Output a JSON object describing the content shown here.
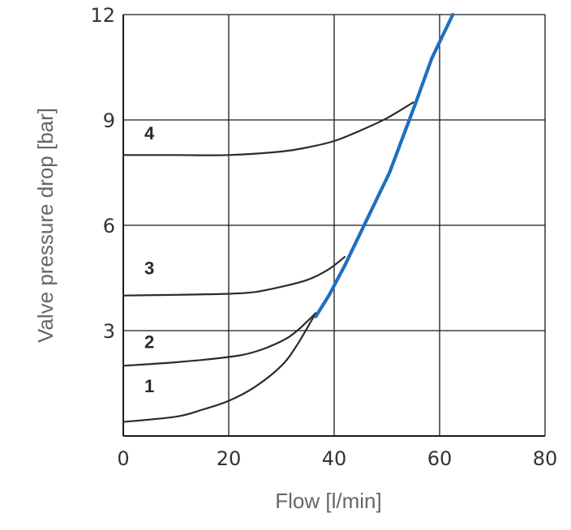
{
  "chart_data": {
    "type": "line",
    "title": "",
    "xlabel": "Flow [l/min]",
    "ylabel": "Valve pressure drop [bar]",
    "xlim": [
      0,
      80
    ],
    "ylim": [
      0,
      12
    ],
    "xticks": [
      0,
      20,
      40,
      60,
      80
    ],
    "yticks": [
      3,
      6,
      9,
      12
    ],
    "x_tick_labels": [
      "0",
      "20",
      "40",
      "60",
      "80"
    ],
    "y_tick_labels": [
      "3",
      "6",
      "9",
      "12"
    ],
    "grid": true,
    "colors": {
      "curves": "#2b2b2b",
      "limit": "#1f6fbf",
      "grid": "#1a1a1a"
    },
    "series": [
      {
        "name": "1",
        "label": "1",
        "label_at": [
          4,
          1.25
        ],
        "points": [
          [
            0,
            0.4
          ],
          [
            10,
            0.55
          ],
          [
            15,
            0.75
          ],
          [
            20,
            1.0
          ],
          [
            25,
            1.4
          ],
          [
            30,
            2.0
          ],
          [
            33,
            2.6
          ],
          [
            36.5,
            3.5
          ]
        ]
      },
      {
        "name": "2",
        "label": "2",
        "label_at": [
          4,
          2.5
        ],
        "points": [
          [
            0,
            2.0
          ],
          [
            10,
            2.1
          ],
          [
            20,
            2.25
          ],
          [
            25,
            2.4
          ],
          [
            30,
            2.7
          ],
          [
            33,
            3.0
          ],
          [
            36.5,
            3.5
          ]
        ]
      },
      {
        "name": "3",
        "label": "3",
        "label_at": [
          4,
          4.6
        ],
        "points": [
          [
            0,
            4.0
          ],
          [
            10,
            4.02
          ],
          [
            20,
            4.05
          ],
          [
            25,
            4.1
          ],
          [
            30,
            4.25
          ],
          [
            35,
            4.45
          ],
          [
            39,
            4.75
          ],
          [
            42,
            5.1
          ]
        ]
      },
      {
        "name": "4",
        "label": "4",
        "label_at": [
          4,
          8.45
        ],
        "points": [
          [
            0,
            8.0
          ],
          [
            10,
            8.0
          ],
          [
            20,
            8.0
          ],
          [
            30,
            8.1
          ],
          [
            35,
            8.22
          ],
          [
            40,
            8.4
          ],
          [
            45,
            8.7
          ],
          [
            50,
            9.05
          ],
          [
            55,
            9.5
          ]
        ]
      }
    ],
    "limit_line": {
      "name": "limit",
      "points": [
        [
          36.5,
          3.4
        ],
        [
          39,
          4.0
        ],
        [
          42,
          4.85
        ],
        [
          46,
          6.1
        ],
        [
          50.5,
          7.5
        ],
        [
          53,
          8.5
        ],
        [
          55.5,
          9.5
        ],
        [
          58.5,
          10.75
        ],
        [
          62.5,
          12.0
        ]
      ]
    }
  }
}
